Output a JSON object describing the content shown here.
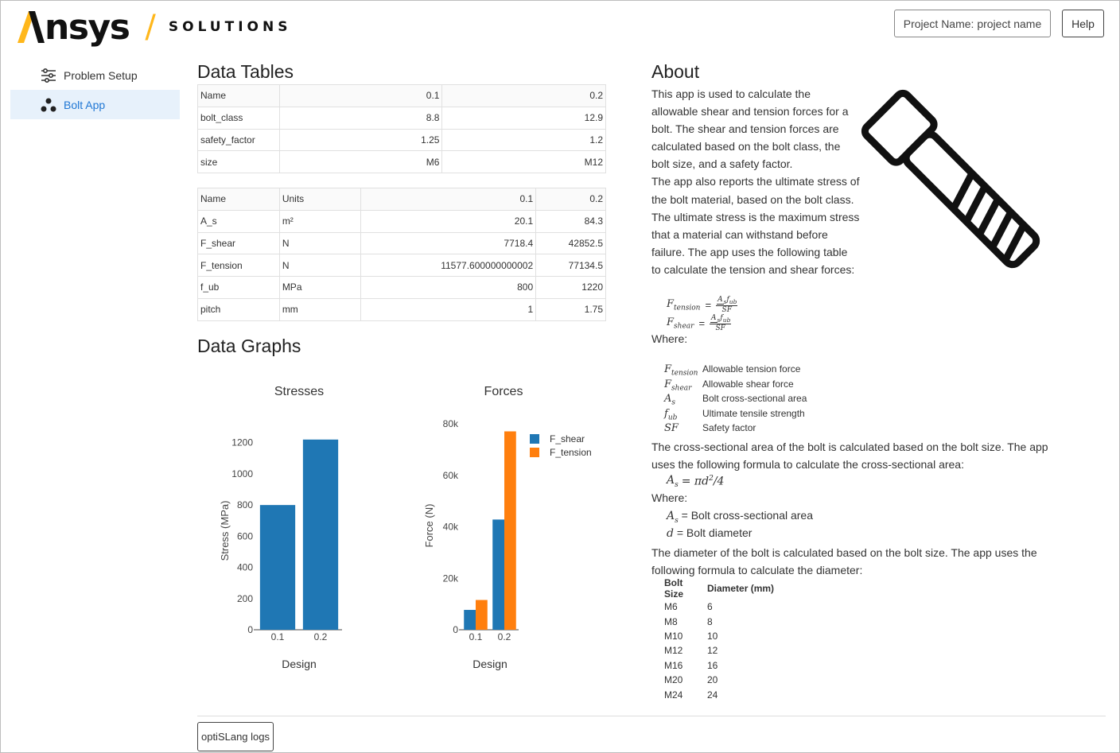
{
  "header": {
    "logo_text": "nsys",
    "logo_slash": "/",
    "separator": "/",
    "subtitle": "SOLUTIONS",
    "project_label": "Project Name: project name",
    "help_label": "Help"
  },
  "sidebar": {
    "items": [
      {
        "label": "Problem Setup",
        "icon": "sliders-icon",
        "active": false
      },
      {
        "label": "Bolt App",
        "icon": "nodes-icon",
        "active": true
      }
    ]
  },
  "data_tables": {
    "title": "Data Tables",
    "inputs": {
      "rows": [
        [
          "Name",
          "0.1",
          "0.2"
        ],
        [
          "bolt_class",
          "8.8",
          "12.9"
        ],
        [
          "safety_factor",
          "1.25",
          "1.2"
        ],
        [
          "size",
          "M6",
          "M12"
        ]
      ]
    },
    "outputs": {
      "rows": [
        [
          "Name",
          "Units",
          "0.1",
          "0.2"
        ],
        [
          "A_s",
          "m²",
          "20.1",
          "84.3"
        ],
        [
          "F_shear",
          "N",
          "7718.4",
          "42852.5"
        ],
        [
          "F_tension",
          "N",
          "11577.600000000002",
          "77134.5"
        ],
        [
          "f_ub",
          "MPa",
          "800",
          "1220"
        ],
        [
          "pitch",
          "mm",
          "1",
          "1.75"
        ]
      ]
    }
  },
  "data_graphs": {
    "title": "Data Graphs"
  },
  "chart_data": [
    {
      "type": "bar",
      "title": "Stresses",
      "xlabel": "Design",
      "ylabel": "Stress (MPa)",
      "categories": [
        "0.1",
        "0.2"
      ],
      "values": [
        800,
        1220
      ],
      "ylim": [
        0,
        1270
      ],
      "yticks": [
        0,
        200,
        400,
        600,
        800,
        1000,
        1200
      ],
      "color": "#1f77b4"
    },
    {
      "type": "bar",
      "title": "Forces",
      "xlabel": "Design",
      "ylabel": "Force (N)",
      "categories": [
        "0.1",
        "0.2"
      ],
      "series": [
        {
          "name": "F_shear",
          "values": [
            7718.4,
            42852.5
          ],
          "color": "#1f77b4"
        },
        {
          "name": "F_tension",
          "values": [
            11577.6,
            77134.5
          ],
          "color": "#ff7f0e"
        }
      ],
      "ylim": [
        0,
        81000
      ],
      "yticks": [
        0,
        20000,
        40000,
        60000,
        80000
      ],
      "ytick_labels": [
        "0",
        "20k",
        "40k",
        "60k",
        "80k"
      ],
      "legend": "top-right"
    }
  ],
  "about": {
    "title": "About",
    "paragraph1": "This app is used to calculate the allowable shear and tension forces for a bolt. The shear and tension forces are calculated based on the bolt class, the bolt size, and a safety factor.",
    "paragraph2": "The app also reports the ultimate stress of the bolt material, based on the bolt class. The ultimate stress is the maximum stress that a material can withstand before failure. The app uses the following table to calculate the tension and shear forces:",
    "formula_tension_lhs": "F",
    "formula_tension_sub": "tension",
    "formula_shear_lhs": "F",
    "formula_shear_sub": "shear",
    "formula_eq": "=",
    "formula_num": "A",
    "formula_num_sub": "s",
    "formula_num_f": "f",
    "formula_num_f_sub": "ub",
    "formula_den": "SF",
    "where1": "Where:",
    "definitions": [
      {
        "sym": "F",
        "sub": "tension",
        "text": "Allowable tension force"
      },
      {
        "sym": "F",
        "sub": "shear",
        "text": "Allowable shear force"
      },
      {
        "sym": "A",
        "sub": "s",
        "text": "Bolt cross-sectional area"
      },
      {
        "sym": "f",
        "sub": "ub",
        "text": "Ultimate tensile strength"
      },
      {
        "sym": "SF",
        "sub": "",
        "text": "Safety factor"
      }
    ],
    "area_text": "The cross-sectional area of the bolt is calculated based on the bolt size. The app uses the following formula to calculate the cross-sectional area:",
    "area_formula_lhs": "A",
    "area_formula_sub": "s",
    "area_formula_rhs": "= πd",
    "area_formula_sup": "2",
    "area_formula_tail": "/4",
    "where2": "Where:",
    "area_def1_sym": "A",
    "area_def1_sub": "s",
    "area_def1_text": "= Bolt cross-sectional area",
    "area_def2_sym": "d",
    "area_def2_text": "= Bolt diameter",
    "diameter_text": "The diameter of the bolt is calculated based on the bolt size. The app uses the following formula to calculate the diameter:",
    "bolt_table": {
      "headers": [
        "Bolt Size",
        "Diameter (mm)"
      ],
      "rows": [
        [
          "M6",
          "6"
        ],
        [
          "M8",
          "8"
        ],
        [
          "M10",
          "10"
        ],
        [
          "M12",
          "12"
        ],
        [
          "M16",
          "16"
        ],
        [
          "M20",
          "20"
        ],
        [
          "M24",
          "24"
        ]
      ]
    }
  },
  "footer": {
    "logs_label": "optiSLang logs"
  }
}
